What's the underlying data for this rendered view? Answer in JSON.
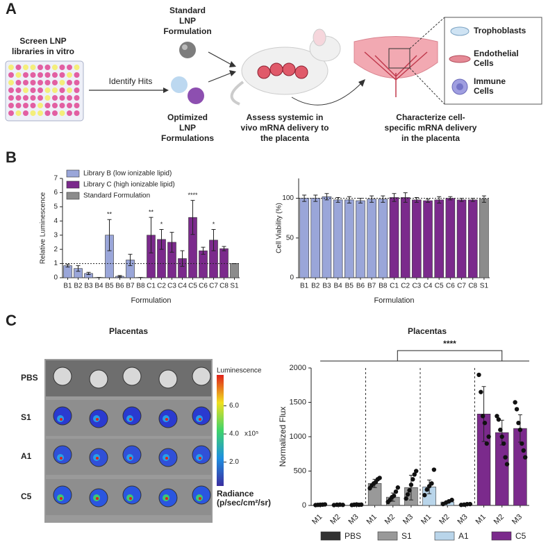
{
  "panel_a": {
    "label": "A",
    "screen": [
      "Screen LNP",
      "libraries in vitro"
    ],
    "identify": "Identify Hits",
    "standard": [
      "Standard",
      "LNP",
      "Formulation"
    ],
    "optimized": [
      "Optimized",
      "LNP",
      "Formulations"
    ],
    "assess": [
      "Assess systemic in",
      "vivo mRNA delivery to",
      "the placenta"
    ],
    "characterize": [
      "Characterize cell-",
      "specific mRNA delivery",
      "in the placenta"
    ],
    "cells": [
      [
        "Trophoblasts"
      ],
      [
        "Endothelial",
        "Cells"
      ],
      [
        "Immune",
        "Cells"
      ]
    ]
  },
  "panel_b": {
    "label": "B"
  },
  "panel_c": {
    "label": "C",
    "image": {
      "title": "Placentas",
      "rows": [
        "PBS",
        "S1",
        "A1",
        "C5"
      ],
      "colorbar_title": "Luminescence",
      "clim": [
        0.3,
        8.2
      ],
      "colorbar_ticks": [
        {
          "value": 6,
          "label": "6.0"
        },
        {
          "value": 4,
          "label": "4.0"
        },
        {
          "value": 2,
          "label": "2.0"
        }
      ],
      "scale": "x10⁵",
      "unit": [
        "Radiance",
        "(p/sec/cm²/sr)"
      ]
    }
  },
  "chart_data": [
    {
      "type": "bar",
      "xlabel": "Formulation",
      "ylabel": "Relative Luminescence",
      "categories": [
        "B1",
        "B2",
        "B3",
        "B4",
        "B5",
        "B6",
        "B7",
        "B8",
        "C1",
        "C2",
        "C3",
        "C4",
        "C5",
        "C6",
        "C7",
        "C8",
        "S1"
      ],
      "series": [
        {
          "name": "Library B (low ionizable lipid)",
          "color": "#9aa6d9",
          "values": [
            0.85,
            0.65,
            0.3,
            0.02,
            3.0,
            0.1,
            1.25,
            0.02,
            null,
            null,
            null,
            null,
            null,
            null,
            null,
            null,
            null
          ],
          "errors": [
            0.1,
            0.2,
            0.08,
            0,
            1.1,
            0.05,
            0.4,
            0,
            null,
            null,
            null,
            null,
            null,
            null,
            null,
            null,
            null
          ]
        },
        {
          "name": "Library C (high ionizable lipid)",
          "color": "#7b2a8c",
          "values": [
            null,
            null,
            null,
            null,
            null,
            null,
            null,
            null,
            3.0,
            2.7,
            2.5,
            1.35,
            4.25,
            1.9,
            2.65,
            2.05,
            null
          ],
          "errors": [
            null,
            null,
            null,
            null,
            null,
            null,
            null,
            null,
            1.25,
            0.7,
            0.7,
            0.55,
            1.2,
            0.25,
            0.75,
            0.15,
            null
          ]
        },
        {
          "name": "Standard Formulation",
          "color": "#8c8c8c",
          "values": [
            null,
            null,
            null,
            null,
            null,
            null,
            null,
            null,
            null,
            null,
            null,
            null,
            null,
            null,
            null,
            null,
            1.0
          ],
          "errors": [
            null,
            null,
            null,
            null,
            null,
            null,
            null,
            null,
            null,
            null,
            null,
            null,
            null,
            null,
            null,
            null,
            0
          ]
        }
      ],
      "significance": [
        null,
        null,
        null,
        null,
        "**",
        null,
        null,
        null,
        "**",
        "*",
        null,
        null,
        "****",
        null,
        "*",
        null,
        null
      ],
      "reference_line": 1,
      "ylim": [
        0,
        7
      ],
      "yticks": [
        0,
        1,
        2,
        3,
        4,
        5,
        6,
        7
      ],
      "legend": "top-left"
    },
    {
      "type": "bar",
      "xlabel": "Formulation",
      "ylabel": "Cell Viability (%)",
      "categories": [
        "B1",
        "B2",
        "B3",
        "B4",
        "B5",
        "B6",
        "B7",
        "B8",
        "C1",
        "C2",
        "C3",
        "C4",
        "C5",
        "C6",
        "C7",
        "C8",
        "S1"
      ],
      "values": [
        100,
        100,
        102,
        98,
        98,
        97,
        99,
        99,
        101,
        101,
        98,
        97,
        98,
        100,
        98,
        98,
        99
      ],
      "errors": [
        4,
        4,
        4,
        3,
        4,
        3,
        4,
        4,
        5,
        6,
        3,
        2,
        4,
        2,
        2,
        2,
        4
      ],
      "colors": [
        "#9aa6d9",
        "#9aa6d9",
        "#9aa6d9",
        "#9aa6d9",
        "#9aa6d9",
        "#9aa6d9",
        "#9aa6d9",
        "#9aa6d9",
        "#7b2a8c",
        "#7b2a8c",
        "#7b2a8c",
        "#7b2a8c",
        "#7b2a8c",
        "#7b2a8c",
        "#7b2a8c",
        "#7b2a8c",
        "#8c8c8c"
      ],
      "reference_line": 100,
      "ylim": [
        0,
        125
      ],
      "yticks": [
        0,
        50,
        100
      ]
    },
    {
      "type": "bar",
      "title": "Placentas",
      "ylabel": "Normalized Flux",
      "bracket_label": "****",
      "categories": [
        "M1",
        "M2",
        "M3",
        "M1",
        "M2",
        "M3",
        "M1",
        "M2",
        "M3",
        "M1",
        "M2",
        "M3"
      ],
      "series": [
        {
          "name": "PBS",
          "color": "#333333",
          "values": [
            10,
            10,
            10,
            null,
            null,
            null,
            null,
            null,
            null,
            null,
            null,
            null
          ],
          "errors": [
            3,
            3,
            3,
            null,
            null,
            null,
            null,
            null,
            null,
            null,
            null,
            null
          ],
          "points": [
            [
              5,
              8,
              10,
              12,
              15
            ],
            [
              5,
              10,
              12,
              8
            ],
            [
              6,
              10,
              14,
              9,
              12
            ],
            null,
            null,
            null,
            null,
            null,
            null,
            null,
            null,
            null
          ]
        },
        {
          "name": "S1",
          "color": "#999999",
          "values": [
            null,
            null,
            null,
            320,
            120,
            260,
            null,
            null,
            null,
            null,
            null,
            null
          ],
          "errors": [
            null,
            null,
            null,
            60,
            60,
            180,
            null,
            null,
            null,
            null,
            null,
            null
          ],
          "points": [
            null,
            null,
            null,
            [
              250,
              290,
              320,
              340,
              380,
              400
            ],
            [
              50,
              80,
              120,
              140,
              200,
              260
            ],
            [
              100,
              160,
              220,
              300,
              380,
              450,
              500
            ],
            null,
            null,
            null,
            null,
            null,
            null
          ]
        },
        {
          "name": "A1",
          "color": "#b9d5ea",
          "values": [
            null,
            null,
            null,
            null,
            null,
            null,
            270,
            50,
            15,
            null,
            null,
            null
          ],
          "errors": [
            null,
            null,
            null,
            null,
            null,
            null,
            100,
            20,
            5,
            null,
            null,
            null
          ],
          "points": [
            null,
            null,
            null,
            null,
            null,
            null,
            [
              150,
              230,
              280,
              320,
              520
            ],
            [
              20,
              40,
              60,
              80
            ],
            [
              8,
              12,
              18,
              20
            ],
            null,
            null,
            null
          ]
        },
        {
          "name": "C5",
          "color": "#7b2a8c",
          "values": [
            null,
            null,
            null,
            null,
            null,
            null,
            null,
            null,
            null,
            1330,
            1060,
            1120
          ],
          "errors": [
            null,
            null,
            null,
            null,
            null,
            null,
            null,
            null,
            null,
            400,
            180,
            200
          ],
          "points": [
            null,
            null,
            null,
            null,
            null,
            null,
            null,
            null,
            null,
            [
              1900,
              1650,
              1300,
              1200,
              900,
              1000
            ],
            [
              1300,
              1250,
              1100,
              1000,
              900,
              700,
              600
            ],
            [
              1500,
              1400,
              1200,
              1100,
              900,
              800,
              700
            ]
          ]
        }
      ],
      "ylim": [
        0,
        2000
      ],
      "yticks": [
        0,
        500,
        1000,
        1500,
        2000
      ],
      "legend": "bottom"
    }
  ]
}
